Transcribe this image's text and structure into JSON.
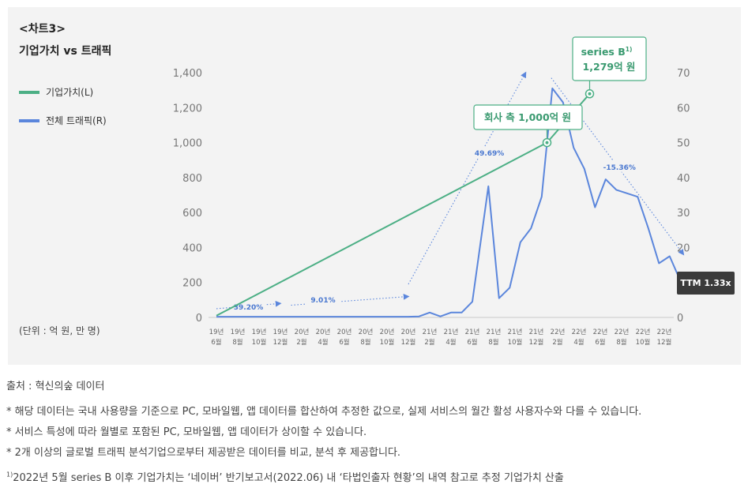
{
  "header": {
    "chart_tag": "<차트3>",
    "title": "기업가치 vs 트래픽"
  },
  "legend": [
    {
      "label": "기업가치(L)",
      "color": "#4caf85"
    },
    {
      "label": "전체 트래픽(R)",
      "color": "#5b86dc"
    }
  ],
  "unit_label": "(단위 : 억 원, 만 명)",
  "ttm_badge": "TTM 1.33x",
  "chart_data": {
    "type": "line",
    "title": "기업가치 vs 트래픽",
    "x_labels_line1": [
      "19년",
      "19년",
      "19년",
      "19년",
      "20년",
      "20년",
      "20년",
      "20년",
      "20년",
      "20년",
      "21년",
      "21년",
      "21년",
      "21년",
      "21년",
      "21년",
      "22년",
      "22년",
      "22년",
      "22년",
      "22년",
      "22년"
    ],
    "x_labels_line2": [
      "6월",
      "8월",
      "10월",
      "12월",
      "2월",
      "4월",
      "6월",
      "8월",
      "10월",
      "12월",
      "2월",
      "4월",
      "6월",
      "8월",
      "10월",
      "12월",
      "2월",
      "4월",
      "6월",
      "8월",
      "10월",
      "12월"
    ],
    "y_left": {
      "min": 0,
      "max": 1400,
      "ticks": [
        "0",
        "200",
        "400",
        "600",
        "800",
        "1,000",
        "1,200",
        "1,400"
      ],
      "tick_values": [
        0,
        200,
        400,
        600,
        800,
        1000,
        1200,
        1400
      ]
    },
    "y_right": {
      "min": 0,
      "max": 70,
      "ticks": [
        "0",
        "10",
        "20",
        "30",
        "40",
        "50",
        "60",
        "70"
      ],
      "tick_values": [
        0,
        10,
        20,
        30,
        40,
        50,
        60,
        70
      ]
    },
    "series": [
      {
        "name": "기업가치(L)",
        "axis": "left",
        "color": "#4caf85",
        "points": [
          {
            "x": 0,
            "y": 10
          },
          {
            "x": 15.5,
            "y": 1000
          },
          {
            "x": 17.5,
            "y": 1279
          }
        ]
      },
      {
        "name": "전체 트래픽(R)",
        "axis": "right",
        "color": "#5b86dc",
        "points": [
          {
            "x": 0,
            "y": 0.2
          },
          {
            "x": 1,
            "y": 0.2
          },
          {
            "x": 2,
            "y": 0.2
          },
          {
            "x": 3,
            "y": 0.2
          },
          {
            "x": 4,
            "y": 0.2
          },
          {
            "x": 5,
            "y": 0.2
          },
          {
            "x": 6,
            "y": 0.2
          },
          {
            "x": 7,
            "y": 0.2
          },
          {
            "x": 8,
            "y": 0.2
          },
          {
            "x": 9,
            "y": 0.2
          },
          {
            "x": 9.5,
            "y": 0.3
          },
          {
            "x": 10,
            "y": 1.4
          },
          {
            "x": 10.5,
            "y": 0.3
          },
          {
            "x": 11,
            "y": 1.4
          },
          {
            "x": 11.5,
            "y": 1.4
          },
          {
            "x": 12,
            "y": 4.5
          },
          {
            "x": 12.75,
            "y": 37.5
          },
          {
            "x": 13.25,
            "y": 5.5
          },
          {
            "x": 13.75,
            "y": 8.5
          },
          {
            "x": 14.25,
            "y": 21.5
          },
          {
            "x": 14.75,
            "y": 25.5
          },
          {
            "x": 15.25,
            "y": 34.5
          },
          {
            "x": 15.75,
            "y": 65.5
          },
          {
            "x": 16.25,
            "y": 61.5
          },
          {
            "x": 16.75,
            "y": 48.5
          },
          {
            "x": 17.25,
            "y": 42.5
          },
          {
            "x": 17.75,
            "y": 31.5
          },
          {
            "x": 18.25,
            "y": 39.5
          },
          {
            "x": 18.75,
            "y": 36.5
          },
          {
            "x": 19.25,
            "y": 35.5
          },
          {
            "x": 19.75,
            "y": 34.5
          },
          {
            "x": 20.25,
            "y": 25.5
          },
          {
            "x": 20.75,
            "y": 15.5
          },
          {
            "x": 21.25,
            "y": 17.5
          },
          {
            "x": 21.75,
            "y": 10.5
          },
          {
            "x": 22.25,
            "y": 9.5
          }
        ]
      }
    ],
    "annotations": [
      {
        "text": "39.20%",
        "from": {
          "x": 0,
          "y": 2.5
        },
        "to": {
          "x": 3,
          "y": 4
        },
        "label_at": {
          "x": 1.5,
          "y": 2.5
        }
      },
      {
        "text": "9.01%",
        "from": {
          "x": 3.5,
          "y": 3.5
        },
        "to": {
          "x": 9,
          "y": 6
        },
        "label_at": {
          "x": 5,
          "y": 4.5
        }
      },
      {
        "text": "49.69%",
        "from": {
          "x": 9.0,
          "y": 9.5
        },
        "to": {
          "x": 14.5,
          "y": 70
        },
        "label_at": {
          "x": 12.8,
          "y": 46.5
        }
      },
      {
        "text": "-15.36%",
        "from": {
          "x": 15.7,
          "y": 68.5
        },
        "to": {
          "x": 21.9,
          "y": 18
        },
        "label_at": {
          "x": 18.9,
          "y": 42.5
        }
      }
    ],
    "callouts": [
      {
        "text": "회사 측 1,000억 원",
        "series": "기업가치(L)",
        "value": 1000
      },
      {
        "line1": "series B",
        "sup": "1)",
        "line2": "1,279억 원",
        "series": "기업가치(L)",
        "value": 1279
      }
    ]
  },
  "footer": {
    "source": "출처 : 혁신의숲 데이터",
    "note1": "* 해당 데이터는 국내 사용량을 기준으로 PC, 모바일웹, 앱 데이터를 합산하여 추정한 값으로, 실제 서비스의 월간 활성 사용자수와 다를 수 있습니다.",
    "note2": "* 서비스 특성에 따라 월별로 포함된 PC, 모바일웹, 앱 데이터가 상이할 수 있습니다.",
    "note3": "* 2개 이상의 글로벌 트래픽 분석기업으로부터 제공받은 데이터를 비교, 분석 후 제공합니다.",
    "footnote_mark": "1)",
    "footnote": "2022년 5월 series B 이후 기업가치는 ‘네이버’ 반기보고서(2022.06) 내 ‘타법인출자 현황’의 내역 참고로 추정 기업가치 산출"
  }
}
